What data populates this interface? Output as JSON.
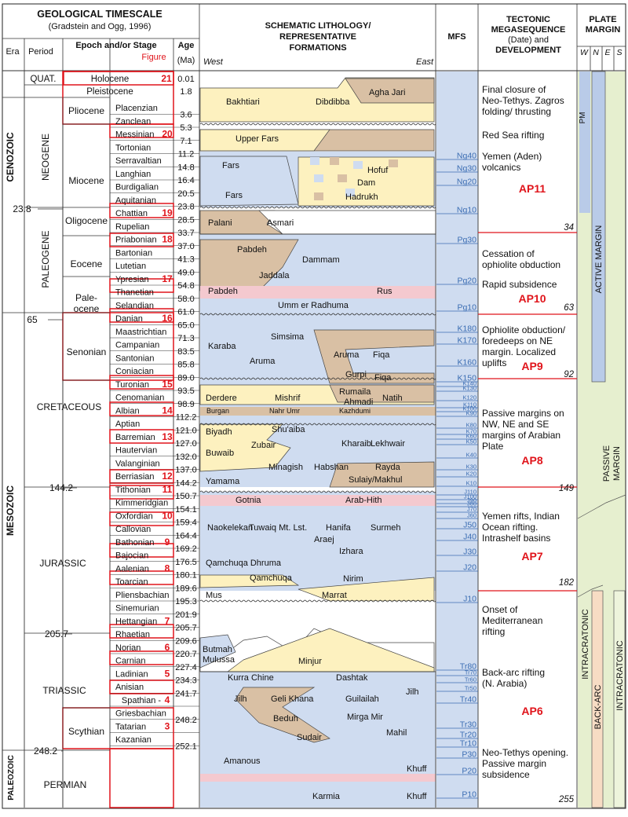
{
  "header": {
    "timescale_title": "GEOLOGICAL TIMESCALE",
    "timescale_source": "(Gradstein and Ogg, 1996)",
    "era": "Era",
    "period": "Period",
    "epoch_stage": "Epoch and/or Stage",
    "figure": "Figure",
    "age": "Age",
    "age_unit": "(Ma)",
    "litho_title_1": "SCHEMATIC LITHOLOGY/",
    "litho_title_2": "REPRESENTATIVE",
    "litho_title_3": "FORMATIONS",
    "west": "West",
    "east": "East",
    "mfs": "MFS",
    "tect_1": "TECTONIC",
    "tect_2": "MEGASEQUENCE",
    "tect_3": "(Date) and",
    "tect_4": "DEVELOPMENT",
    "plate_1": "PLATE",
    "plate_2": "MARGIN",
    "w": "W",
    "n": "N",
    "e": "E",
    "s": "S"
  },
  "eras": [
    "CENOZOIC",
    "MESOZOIC",
    "PALEOZOIC"
  ],
  "periods": [
    "QUAT.",
    "NEOGENE",
    "PALEOGENE",
    "CRETACEOUS",
    "JURASSIC",
    "TRIASSIC",
    "PERMIAN"
  ],
  "epochs": [
    "Holocene",
    "Pleistocene",
    "Pliocene",
    "Miocene",
    "Oligocene",
    "Eocene",
    "Pale-",
    "ocene",
    "Senonian",
    "Scythian"
  ],
  "boundaries": [
    "23.8",
    "65",
    "144.2",
    "205.7",
    "248.2"
  ],
  "stages": [
    {
      "name": "Placenzian",
      "age": "3.6",
      "fig": ""
    },
    {
      "name": "Zanclean",
      "age": "5.3",
      "fig": ""
    },
    {
      "name": "Messinian",
      "age": "7.1",
      "fig": "20"
    },
    {
      "name": "Tortonian",
      "age": "11.2",
      "fig": ""
    },
    {
      "name": "Serravaltian",
      "age": "14.8",
      "fig": ""
    },
    {
      "name": "Langhian",
      "age": "16.4",
      "fig": ""
    },
    {
      "name": "Burdigalian",
      "age": "20.5",
      "fig": ""
    },
    {
      "name": "Aquitanian",
      "age": "23.8",
      "fig": ""
    },
    {
      "name": "Chattian",
      "age": "28.5",
      "fig": "19"
    },
    {
      "name": "Rupelian",
      "age": "33.7",
      "fig": ""
    },
    {
      "name": "Priabonian",
      "age": "37.0",
      "fig": "18"
    },
    {
      "name": "Bartonian",
      "age": "41.3",
      "fig": ""
    },
    {
      "name": "Lutetian",
      "age": "49.0",
      "fig": ""
    },
    {
      "name": "Ypresian",
      "age": "54.8",
      "fig": "17"
    },
    {
      "name": "Thanetian",
      "age": "58.0",
      "fig": ""
    },
    {
      "name": "Selandian",
      "age": "61.0",
      "fig": ""
    },
    {
      "name": "Danian",
      "age": "65.0",
      "fig": "16"
    },
    {
      "name": "Maastrichtian",
      "age": "71.3",
      "fig": ""
    },
    {
      "name": "Campanian",
      "age": "83.5",
      "fig": ""
    },
    {
      "name": "Santonian",
      "age": "85.8",
      "fig": ""
    },
    {
      "name": "Coniacian",
      "age": "89.0",
      "fig": ""
    },
    {
      "name": "Turonian",
      "age": "93.5",
      "fig": "15"
    },
    {
      "name": "Cenomanian",
      "age": "98.9",
      "fig": ""
    },
    {
      "name": "Albian",
      "age": "112.2",
      "fig": "14"
    },
    {
      "name": "Aptian",
      "age": "121.0",
      "fig": ""
    },
    {
      "name": "Barremian",
      "age": "127.0",
      "fig": "13"
    },
    {
      "name": "Hautervian",
      "age": "132.0",
      "fig": ""
    },
    {
      "name": "Valanginian",
      "age": "137.0",
      "fig": ""
    },
    {
      "name": "Berriasian",
      "age": "144.2",
      "fig": "12"
    },
    {
      "name": "Tithonian",
      "age": "150.7",
      "fig": "11"
    },
    {
      "name": "Kimmeridgian",
      "age": "154.1",
      "fig": ""
    },
    {
      "name": "Oxfordian",
      "age": "159.4",
      "fig": "10"
    },
    {
      "name": "Callovian",
      "age": "164.4",
      "fig": ""
    },
    {
      "name": "Bathonian",
      "age": "169.2",
      "fig": "9"
    },
    {
      "name": "Bajocian",
      "age": "176.5",
      "fig": ""
    },
    {
      "name": "Aalenian",
      "age": "180.1",
      "fig": "8"
    },
    {
      "name": "Toarcian",
      "age": "189.6",
      "fig": ""
    },
    {
      "name": "Pliensbachian",
      "age": "195.3",
      "fig": ""
    },
    {
      "name": "Sinemurian",
      "age": "201.9",
      "fig": ""
    },
    {
      "name": "Hettangian",
      "age": "205.7",
      "fig": "7"
    },
    {
      "name": "Rhaetian",
      "age": "209.6",
      "fig": ""
    },
    {
      "name": "Norian",
      "age": "220.7",
      "fig": "6"
    },
    {
      "name": "Carnian",
      "age": "227.4",
      "fig": ""
    },
    {
      "name": "Ladinian",
      "age": "234.3",
      "fig": "5"
    },
    {
      "name": "Anisian",
      "age": "241.7",
      "fig": ""
    },
    {
      "name": "Spathian -",
      "age": "",
      "fig": "4"
    },
    {
      "name": "Griesbachian",
      "age": "248.2",
      "fig": ""
    },
    {
      "name": "Tatarian",
      "age": "",
      "fig": "3"
    },
    {
      "name": "Kazanian",
      "age": "252.1",
      "fig": ""
    }
  ],
  "top_ages": [
    "0.01",
    "1.8"
  ],
  "top_figs": [
    "21"
  ],
  "formations": [
    "Bakhtiari",
    "Dibdibba",
    "Agha Jari",
    "Upper Fars",
    "Fars",
    "Hofuf",
    "Dam",
    "Hadrukh",
    "Fars",
    "Palani",
    "Asmari",
    "Pabdeh",
    "Dammam",
    "Jaddala",
    "Pabdeh",
    "Rus",
    "Umm er Radhuma",
    "Simsima",
    "Karaba",
    "Aruma",
    "Aruma",
    "Fiqa",
    "Gurpi",
    "Fiqa",
    "Derdere",
    "Mishrif",
    "Rumaila",
    "Ahmadi",
    "Natih",
    "Burgan",
    "Nahr Umr",
    "Kazhdumi",
    "Biyadh",
    "Shu'aiba",
    "Zubair",
    "Buwaib",
    "Kharaib",
    "Lekhwair",
    "Minagish",
    "Habshan",
    "Rayda",
    "Yamama",
    "Sulaiy/Makhul",
    "Gotnia",
    "Arab-Hith",
    "Naokelekan",
    "Tuwaiq Mt. Lst.",
    "Hanifa",
    "Surmeh",
    "Araej",
    "Izhara",
    "Qamchuqa Dhruma",
    "Qamchuqa",
    "Nirim",
    "Mus",
    "Marrat",
    "Butmah",
    "Mulussa",
    "Minjur",
    "Kurra Chine",
    "Dashtak",
    "Jilh",
    "Jilh",
    "Geli Khana",
    "Guilailah",
    "Beduh",
    "Mirga Mir",
    "Sudair",
    "Mahil",
    "Amanous",
    "Khuff",
    "Karmia",
    "Khuff"
  ],
  "mfs": [
    "Ng40",
    "Ng30",
    "Ng20",
    "Ng10",
    "Pg30",
    "Pg20",
    "Pg10",
    "K180",
    "K170",
    "K160",
    "K150",
    "K140",
    "K130",
    "K120",
    "K110",
    "K100",
    "K90",
    "K80",
    "K70",
    "K60",
    "K50",
    "K40",
    "K30",
    "K20",
    "K10",
    "J110",
    "J100",
    "J90",
    "J80",
    "J70",
    "J60",
    "J50",
    "J40",
    "J30",
    "J20",
    "J10",
    "Tr80",
    "Tr70",
    "Tr60",
    "Tr50",
    "Tr40",
    "Tr30",
    "Tr20",
    "Tr10",
    "P30",
    "P20",
    "P10"
  ],
  "tectonics": [
    {
      "text": "Final closure of",
      "kind": "t"
    },
    {
      "text": "Neo-Tethys. Zagros",
      "kind": "t"
    },
    {
      "text": "folding/ thrusting",
      "kind": "t"
    },
    {
      "text": "Red Sea rifting",
      "kind": "t"
    },
    {
      "text": "Yemen (Aden)",
      "kind": "t"
    },
    {
      "text": "volcanics",
      "kind": "t"
    },
    {
      "text": "AP11",
      "kind": "ap"
    },
    {
      "text": "34",
      "kind": "d"
    },
    {
      "text": "Cessation of",
      "kind": "t"
    },
    {
      "text": "ophiolite obduction",
      "kind": "t"
    },
    {
      "text": "Rapid subsidence",
      "kind": "t"
    },
    {
      "text": "AP10",
      "kind": "ap"
    },
    {
      "text": "63",
      "kind": "d"
    },
    {
      "text": "Ophiolite obduction/",
      "kind": "t"
    },
    {
      "text": "foredeeps on NE",
      "kind": "t"
    },
    {
      "text": "margin. Localized",
      "kind": "t"
    },
    {
      "text": "uplifts",
      "kind": "t"
    },
    {
      "text": "AP9",
      "kind": "ap"
    },
    {
      "text": "92",
      "kind": "d"
    },
    {
      "text": "Passive margins on",
      "kind": "t"
    },
    {
      "text": "NW, NE and SE",
      "kind": "t"
    },
    {
      "text": "margins of Arabian",
      "kind": "t"
    },
    {
      "text": "Plate",
      "kind": "t"
    },
    {
      "text": "AP8",
      "kind": "ap"
    },
    {
      "text": "149",
      "kind": "d"
    },
    {
      "text": "Yemen rifts, Indian",
      "kind": "t"
    },
    {
      "text": "Ocean rifting.",
      "kind": "t"
    },
    {
      "text": "Intrashelf basins",
      "kind": "t"
    },
    {
      "text": "AP7",
      "kind": "ap"
    },
    {
      "text": "182",
      "kind": "d"
    },
    {
      "text": "Onset of",
      "kind": "t"
    },
    {
      "text": "Mediterranean",
      "kind": "t"
    },
    {
      "text": "rifting",
      "kind": "t"
    },
    {
      "text": "Back-arc rifting",
      "kind": "t"
    },
    {
      "text": "(N. Arabia)",
      "kind": "t"
    },
    {
      "text": "AP6",
      "kind": "ap"
    },
    {
      "text": "Neo-Tethys opening.",
      "kind": "t"
    },
    {
      "text": "Passive margin",
      "kind": "t"
    },
    {
      "text": "subsidence",
      "kind": "t"
    },
    {
      "text": "255",
      "kind": "d"
    }
  ],
  "plate": {
    "pm": "PM",
    "active": "ACTIVE MARGIN",
    "passive_1": "PASSIVE",
    "passive_2": "MARGIN",
    "intra_1": "INTRACRATONIC",
    "backarc": "BACK-ARC",
    "intra_2": "INTRACRATONIC"
  },
  "colors": {
    "red": "#e0141b",
    "blue": "#cfdcf0",
    "tan": "#d9c0a4",
    "yellow": "#fdf1bf",
    "pink": "#f4c9cf",
    "green": "#e6efcf",
    "band": "#b9cbe8"
  }
}
